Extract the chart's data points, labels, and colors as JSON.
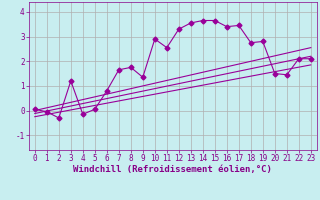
{
  "title": "",
  "xlabel": "Windchill (Refroidissement éolien,°C)",
  "ylabel": "",
  "bg_color": "#c8eef0",
  "line_color": "#990099",
  "grid_color": "#b0b0b0",
  "xlim": [
    -0.5,
    23.5
  ],
  "ylim": [
    -1.6,
    4.4
  ],
  "yticks": [
    -1,
    0,
    1,
    2,
    3,
    4
  ],
  "xticks": [
    0,
    1,
    2,
    3,
    4,
    5,
    6,
    7,
    8,
    9,
    10,
    11,
    12,
    13,
    14,
    15,
    16,
    17,
    18,
    19,
    20,
    21,
    22,
    23
  ],
  "data_x": [
    0,
    1,
    2,
    3,
    4,
    5,
    6,
    7,
    8,
    9,
    10,
    11,
    12,
    13,
    14,
    15,
    16,
    17,
    18,
    19,
    20,
    21,
    22,
    23
  ],
  "data_y": [
    0.05,
    -0.05,
    -0.3,
    1.2,
    -0.15,
    0.05,
    0.8,
    1.65,
    1.75,
    1.35,
    2.9,
    2.55,
    3.3,
    3.55,
    3.65,
    3.65,
    3.4,
    3.45,
    2.75,
    2.8,
    1.5,
    1.45,
    2.1,
    2.1
  ],
  "trend1_x": [
    0,
    23
  ],
  "trend1_y": [
    -0.25,
    1.85
  ],
  "trend2_x": [
    0,
    23
  ],
  "trend2_y": [
    0.0,
    2.55
  ],
  "trend3_x": [
    0,
    23
  ],
  "trend3_y": [
    -0.12,
    2.2
  ],
  "marker": "D",
  "markersize": 2.5,
  "linewidth": 0.8,
  "xlabel_fontsize": 6.5,
  "tick_fontsize": 5.5
}
